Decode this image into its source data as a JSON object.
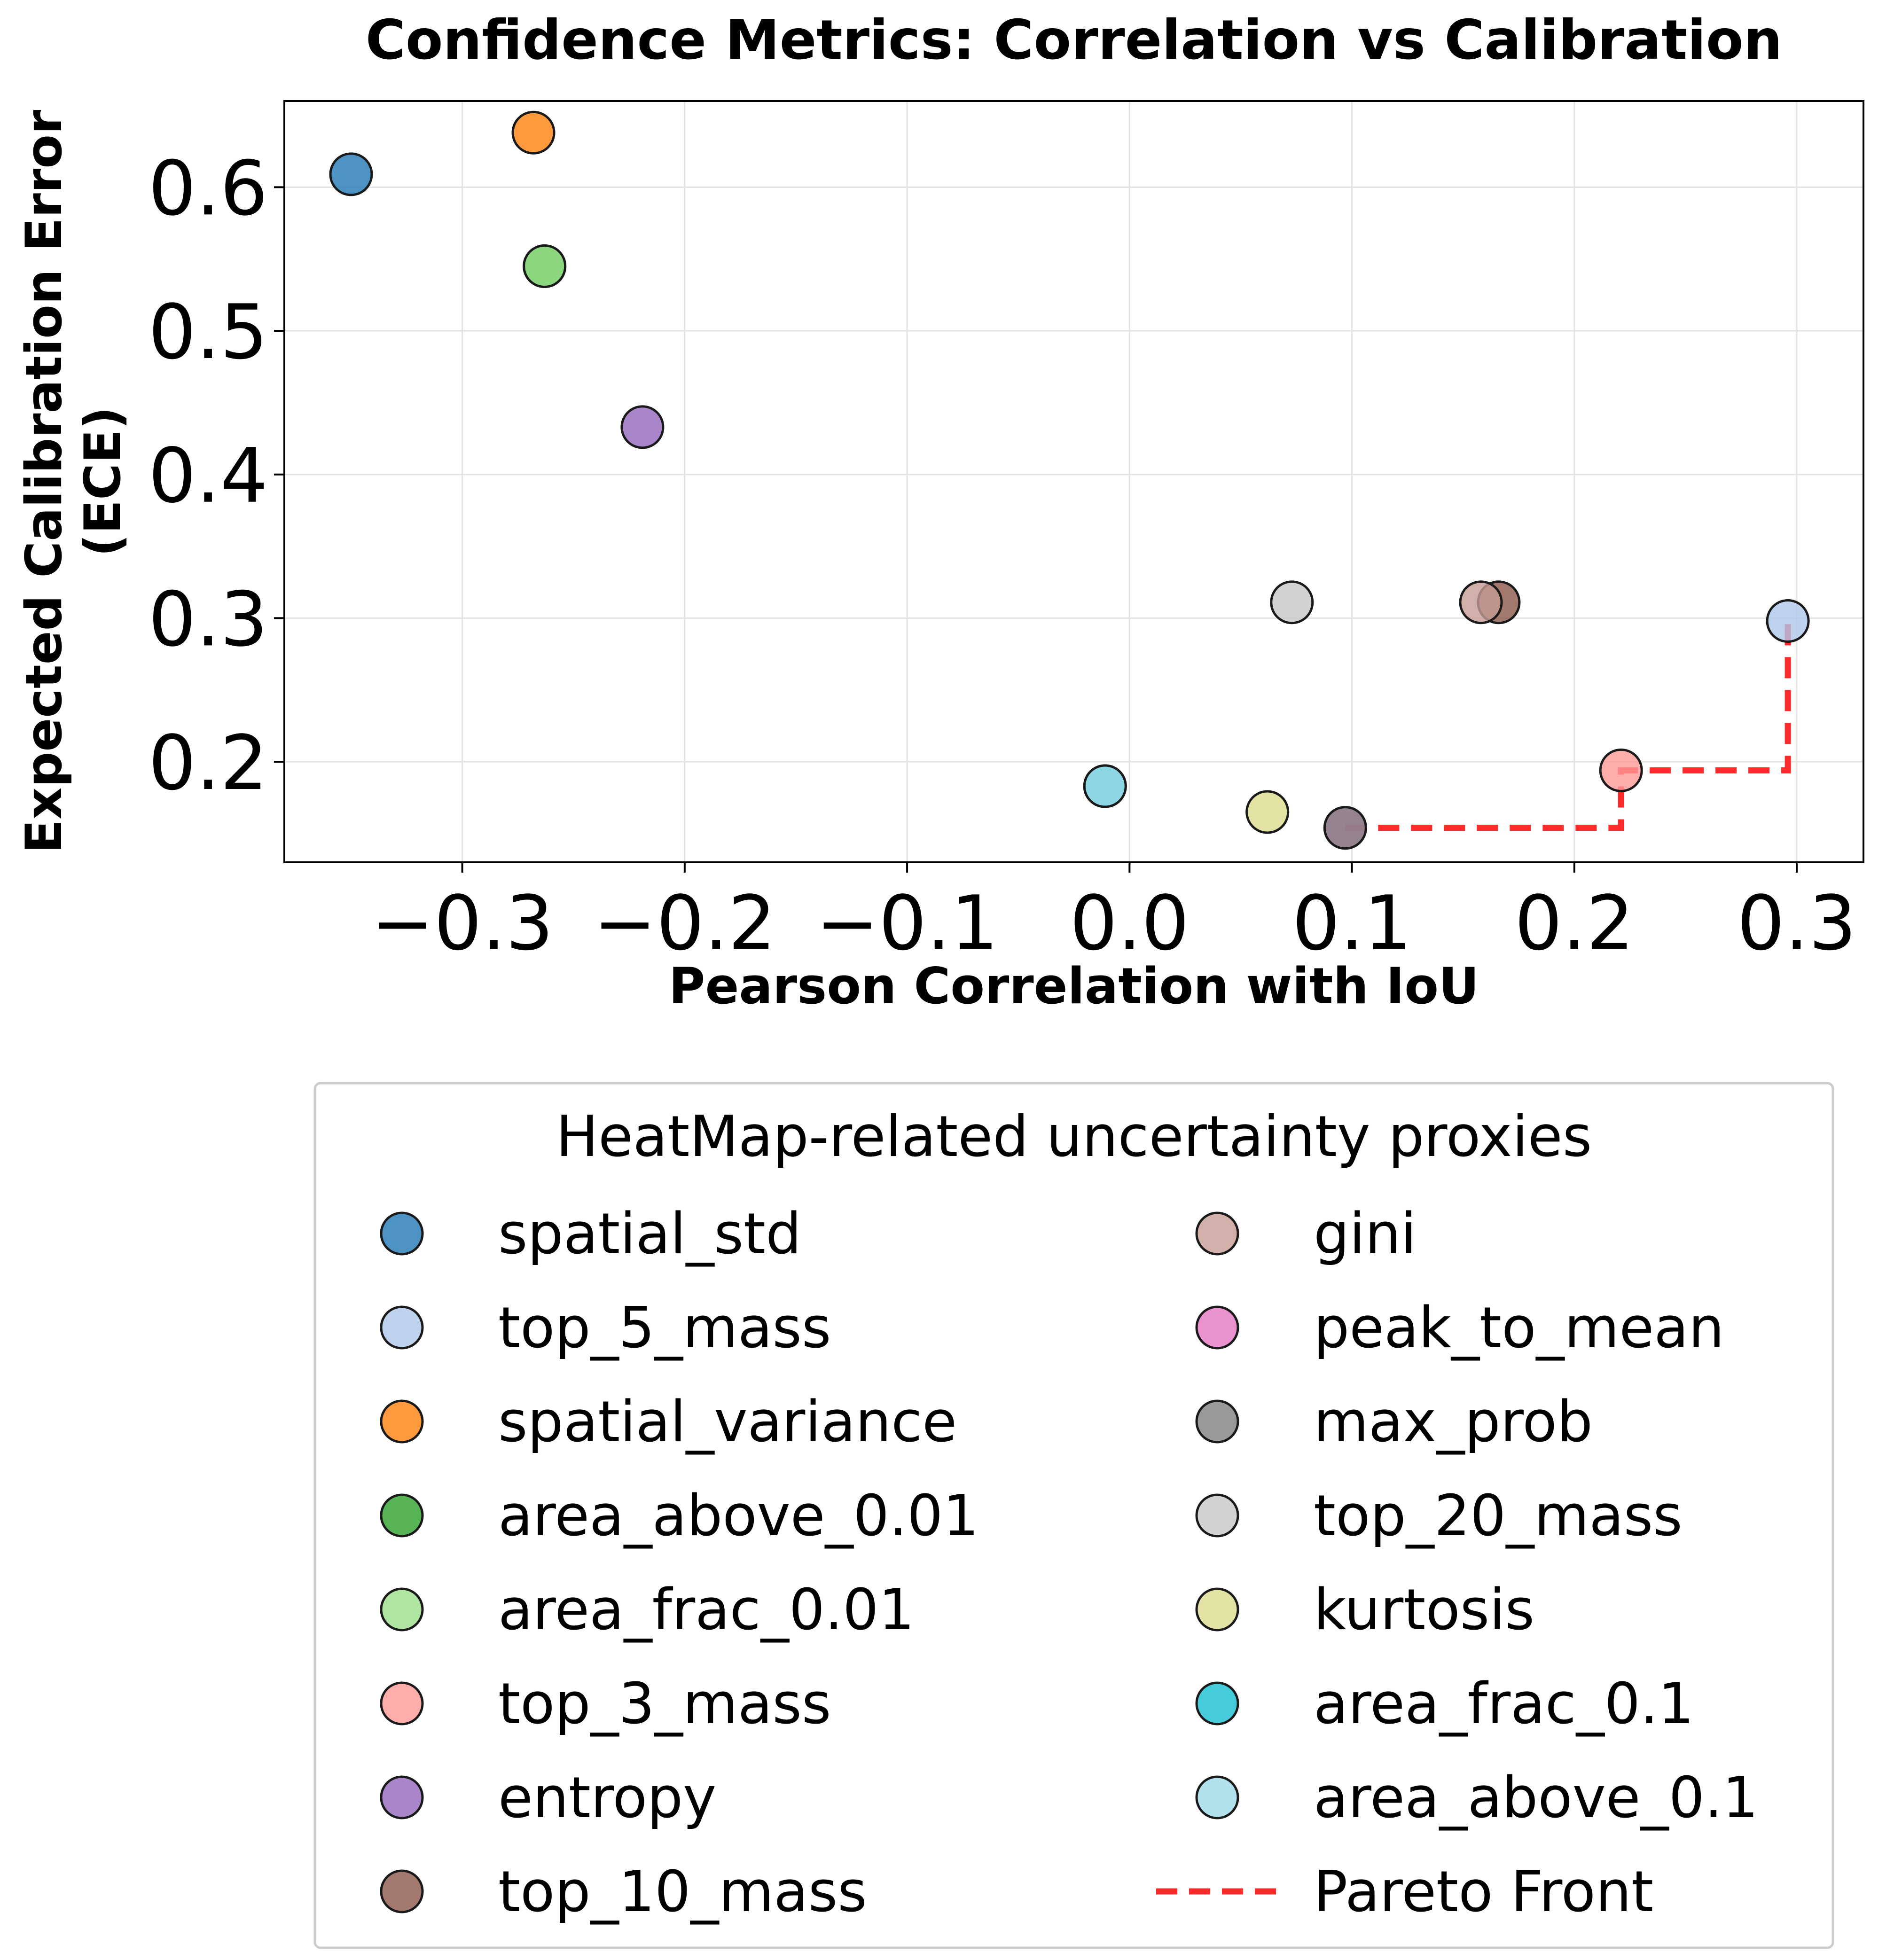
{
  "chart_data": {
    "type": "scatter",
    "title": "Confidence Metrics: Correlation vs Calibration",
    "xlabel": "Pearson Correlation with IoU",
    "ylabel_line1": "Expected Calibration Error",
    "ylabel_line2": "(ECE)",
    "xlim": [
      -0.38,
      0.33
    ],
    "ylim": [
      0.13,
      0.66
    ],
    "xticks": [
      -0.3,
      -0.2,
      -0.1,
      0.0,
      0.1,
      0.2,
      0.3
    ],
    "xtick_labels": [
      "−0.3",
      "−0.2",
      "−0.1",
      "0.0",
      "0.1",
      "0.2",
      "0.3"
    ],
    "yticks": [
      0.2,
      0.3,
      0.4,
      0.5,
      0.6
    ],
    "ytick_labels": [
      "0.2",
      "0.3",
      "0.4",
      "0.5",
      "0.6"
    ],
    "grid": true,
    "legend_title": "HeatMap-related uncertainty proxies",
    "legend_position": "below",
    "points": [
      {
        "name": "spatial_std",
        "x": -0.35,
        "y": 0.609,
        "color": "#1f77b4"
      },
      {
        "name": "top_5_mass",
        "x": 0.296,
        "y": 0.298,
        "color": "#aec7e8"
      },
      {
        "name": "spatial_variance",
        "x": -0.268,
        "y": 0.638,
        "color": "#ff7f0e"
      },
      {
        "name": "area_above_0.01",
        "x": -0.263,
        "y": 0.545,
        "color": "#2ca02c"
      },
      {
        "name": "area_frac_0.01",
        "x": -0.263,
        "y": 0.545,
        "color": "#98df8a"
      },
      {
        "name": "top_3_mass",
        "x": 0.221,
        "y": 0.194,
        "color": "#ff9896"
      },
      {
        "name": "entropy",
        "x": -0.219,
        "y": 0.433,
        "color": "#9467bd"
      },
      {
        "name": "top_10_mass",
        "x": 0.166,
        "y": 0.311,
        "color": "#8c564b"
      },
      {
        "name": "gini",
        "x": 0.158,
        "y": 0.311,
        "color": "#c49c94"
      },
      {
        "name": "peak_to_mean",
        "x": 0.097,
        "y": 0.154,
        "color": "#e377c2"
      },
      {
        "name": "max_prob",
        "x": 0.097,
        "y": 0.154,
        "color": "#7f7f7f"
      },
      {
        "name": "top_20_mass",
        "x": 0.073,
        "y": 0.311,
        "color": "#c7c7c7"
      },
      {
        "name": "kurtosis",
        "x": 0.062,
        "y": 0.165,
        "color": "#dbdb8d"
      },
      {
        "name": "area_frac_0.1",
        "x": -0.011,
        "y": 0.183,
        "color": "#17becf"
      },
      {
        "name": "area_above_0.1",
        "x": -0.011,
        "y": 0.183,
        "color": "#9edae5"
      }
    ],
    "pareto_front": {
      "name": "Pareto Front",
      "color": "#ff2a2a",
      "x": [
        0.097,
        0.221,
        0.221,
        0.296,
        0.296
      ],
      "y": [
        0.154,
        0.154,
        0.194,
        0.194,
        0.298
      ]
    }
  }
}
